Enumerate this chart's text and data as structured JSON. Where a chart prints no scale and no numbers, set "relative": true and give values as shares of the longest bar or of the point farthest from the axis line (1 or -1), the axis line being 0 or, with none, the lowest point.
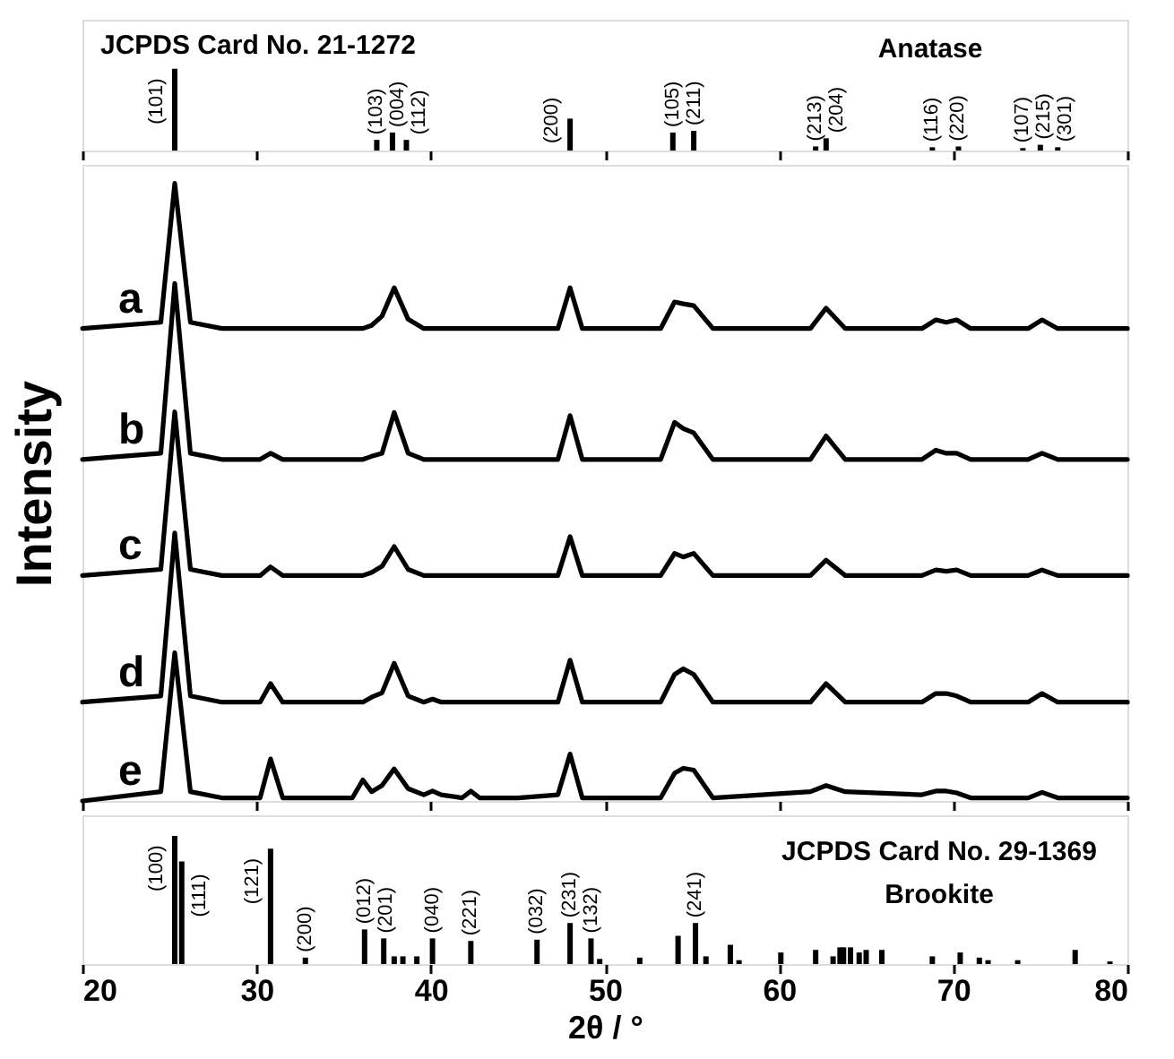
{
  "chart_data": [
    {
      "type": "bar",
      "relative": true,
      "xlim": [
        20,
        80
      ],
      "xticks": [
        20,
        30,
        40,
        50,
        60,
        70,
        80
      ],
      "tick_labels": false,
      "grid": false,
      "x": [
        25.3,
        36.9,
        37.8,
        38.6,
        48.0,
        53.9,
        55.1,
        62.1,
        62.7,
        68.8,
        70.3,
        74.0,
        75.0,
        76.0
      ],
      "values": [
        1.0,
        0.13,
        0.22,
        0.13,
        0.39,
        0.22,
        0.24,
        0.05,
        0.15,
        0.04,
        0.05,
        0.03,
        0.07,
        0.04
      ],
      "color": "#000000",
      "annotations": [
        "JCPDS Card No. 21-1272",
        "Anatase",
        {
          "text": "(101)",
          "x": 25.3,
          "y": 1.0
        },
        {
          "text": "(103)",
          "x": 36.9,
          "y": 0.13
        },
        {
          "text": "(004)",
          "x": 37.8,
          "y": 0.22
        },
        {
          "text": "(112)",
          "x": 38.6,
          "y": 0.13
        },
        {
          "text": "(200)",
          "x": 48.0,
          "y": 0.39
        },
        {
          "text": "(105)",
          "x": 53.9,
          "y": 0.22
        },
        {
          "text": "(211)",
          "x": 55.1,
          "y": 0.24
        },
        {
          "text": "(213)",
          "x": 62.1,
          "y": 0.05
        },
        {
          "text": "(204)",
          "x": 62.7,
          "y": 0.15
        },
        {
          "text": "(116)",
          "x": 68.8,
          "y": 0.04
        },
        {
          "text": "(220)",
          "x": 70.3,
          "y": 0.05
        },
        {
          "text": "(107)",
          "x": 74.0,
          "y": 0.03
        },
        {
          "text": "(215)",
          "x": 75.0,
          "y": 0.07
        },
        {
          "text": "(301)",
          "x": 76.0,
          "y": 0.04
        }
      ]
    },
    {
      "type": "line",
      "relative": true,
      "ylabel": "Intensity",
      "xlim": [
        20,
        80
      ],
      "xticks": [
        20,
        30,
        40,
        50,
        60,
        70,
        80
      ],
      "tick_labels": false,
      "grid": false,
      "legend": false,
      "marker": "none",
      "line_style": "solid",
      "x": [
        20,
        24.5,
        25.3,
        26.2,
        28,
        30.2,
        30.8,
        31.5,
        35.5,
        36.1,
        36.6,
        37.2,
        37.9,
        38.7,
        39.6,
        40.1,
        40.6,
        41.8,
        42.3,
        42.8,
        45,
        47.3,
        48.0,
        48.7,
        53.2,
        54.0,
        54.5,
        55.1,
        56.2,
        61.8,
        62.7,
        63.8,
        68.2,
        69.0,
        69.6,
        70.2,
        71,
        74.3,
        75.1,
        76,
        80
      ],
      "series": [
        {
          "name": "a",
          "color": "#000000",
          "values": [
            0.765,
            0.775,
            1.0,
            0.775,
            0.765,
            0.765,
            0.765,
            0.765,
            0.765,
            0.765,
            0.77,
            0.785,
            0.831,
            0.78,
            0.765,
            0.765,
            0.765,
            0.765,
            0.765,
            0.765,
            0.765,
            0.765,
            0.831,
            0.765,
            0.765,
            0.808,
            0.805,
            0.802,
            0.765,
            0.765,
            0.798,
            0.765,
            0.765,
            0.779,
            0.775,
            0.779,
            0.765,
            0.765,
            0.779,
            0.765,
            0.765
          ]
        },
        {
          "name": "b",
          "color": "#000000",
          "values": [
            0.553,
            0.563,
            0.838,
            0.563,
            0.553,
            0.553,
            0.563,
            0.553,
            0.553,
            0.553,
            0.558,
            0.563,
            0.629,
            0.563,
            0.553,
            0.553,
            0.553,
            0.553,
            0.553,
            0.553,
            0.553,
            0.553,
            0.624,
            0.553,
            0.553,
            0.613,
            0.603,
            0.596,
            0.553,
            0.553,
            0.591,
            0.553,
            0.553,
            0.568,
            0.563,
            0.563,
            0.553,
            0.553,
            0.563,
            0.553,
            0.553
          ]
        },
        {
          "name": "c",
          "color": "#000000",
          "values": [
            0.365,
            0.375,
            0.63,
            0.375,
            0.365,
            0.365,
            0.379,
            0.365,
            0.365,
            0.365,
            0.37,
            0.38,
            0.412,
            0.375,
            0.365,
            0.365,
            0.365,
            0.365,
            0.365,
            0.365,
            0.365,
            0.365,
            0.428,
            0.365,
            0.365,
            0.401,
            0.395,
            0.401,
            0.365,
            0.365,
            0.39,
            0.365,
            0.365,
            0.374,
            0.372,
            0.374,
            0.365,
            0.365,
            0.374,
            0.365,
            0.365
          ]
        },
        {
          "name": "d",
          "color": "#000000",
          "values": [
            0.16,
            0.17,
            0.434,
            0.17,
            0.16,
            0.16,
            0.19,
            0.16,
            0.16,
            0.16,
            0.168,
            0.175,
            0.223,
            0.17,
            0.16,
            0.165,
            0.16,
            0.16,
            0.16,
            0.16,
            0.16,
            0.16,
            0.228,
            0.16,
            0.16,
            0.205,
            0.214,
            0.205,
            0.16,
            0.16,
            0.19,
            0.16,
            0.16,
            0.174,
            0.174,
            0.17,
            0.16,
            0.16,
            0.174,
            0.16,
            0.16
          ]
        },
        {
          "name": "e",
          "color": "#000000",
          "values": [
            0,
            0.015,
            0.24,
            0.015,
            0.005,
            0.005,
            0.068,
            0.005,
            0.005,
            0.034,
            0.015,
            0.025,
            0.052,
            0.02,
            0.01,
            0.016,
            0.01,
            0.005,
            0.016,
            0.005,
            0.005,
            0.01,
            0.076,
            0.005,
            0.005,
            0.045,
            0.053,
            0.05,
            0.005,
            0.015,
            0.025,
            0.015,
            0.01,
            0.016,
            0.016,
            0.013,
            0.005,
            0.005,
            0.014,
            0.005,
            0.005
          ]
        }
      ]
    },
    {
      "type": "bar",
      "relative": true,
      "xlabel": "2θ / °",
      "xlim": [
        20,
        80
      ],
      "xticks": [
        20,
        30,
        40,
        50,
        60,
        70,
        80
      ],
      "tick_labels": "x",
      "grid": false,
      "x": [
        25.3,
        25.7,
        30.8,
        32.8,
        36.2,
        37.3,
        37.9,
        38.4,
        39.2,
        40.1,
        42.3,
        46.1,
        48.0,
        49.2,
        49.7,
        52.0,
        54.2,
        55.2,
        55.8,
        57.2,
        57.7,
        60.1,
        62.1,
        63.1,
        63.5,
        63.7,
        64.1,
        64.6,
        65.0,
        65.9,
        68.8,
        70.4,
        71.5,
        72.0,
        73.7,
        77.0,
        79.0
      ],
      "values": [
        1.0,
        0.8,
        0.9,
        0.05,
        0.27,
        0.2,
        0.06,
        0.06,
        0.06,
        0.2,
        0.18,
        0.19,
        0.32,
        0.2,
        0.04,
        0.05,
        0.22,
        0.32,
        0.06,
        0.15,
        0.03,
        0.09,
        0.11,
        0.06,
        0.13,
        0.13,
        0.13,
        0.09,
        0.11,
        0.11,
        0.06,
        0.09,
        0.05,
        0.03,
        0.03,
        0.11,
        0.02
      ],
      "color": "#000000",
      "annotations": [
        "JCPDS Card No. 29-1369",
        "Brookite",
        {
          "text": "(100)",
          "x": 25.3,
          "y": 1.0
        },
        {
          "text": "(111)",
          "x": 25.7,
          "y": 0.8
        },
        {
          "text": "(121)",
          "x": 30.8,
          "y": 0.9
        },
        {
          "text": "(200)",
          "x": 32.8,
          "y": 0.05
        },
        {
          "text": "(012)",
          "x": 36.2,
          "y": 0.27
        },
        {
          "text": "(201)",
          "x": 37.3,
          "y": 0.2
        },
        {
          "text": "(040)",
          "x": 40.1,
          "y": 0.2
        },
        {
          "text": "(221)",
          "x": 42.3,
          "y": 0.18
        },
        {
          "text": "(032)",
          "x": 46.1,
          "y": 0.19
        },
        {
          "text": "(231)",
          "x": 48.0,
          "y": 0.32
        },
        {
          "text": "(132)",
          "x": 49.2,
          "y": 0.2
        },
        {
          "text": "(241)",
          "x": 55.2,
          "y": 0.32
        }
      ]
    }
  ]
}
